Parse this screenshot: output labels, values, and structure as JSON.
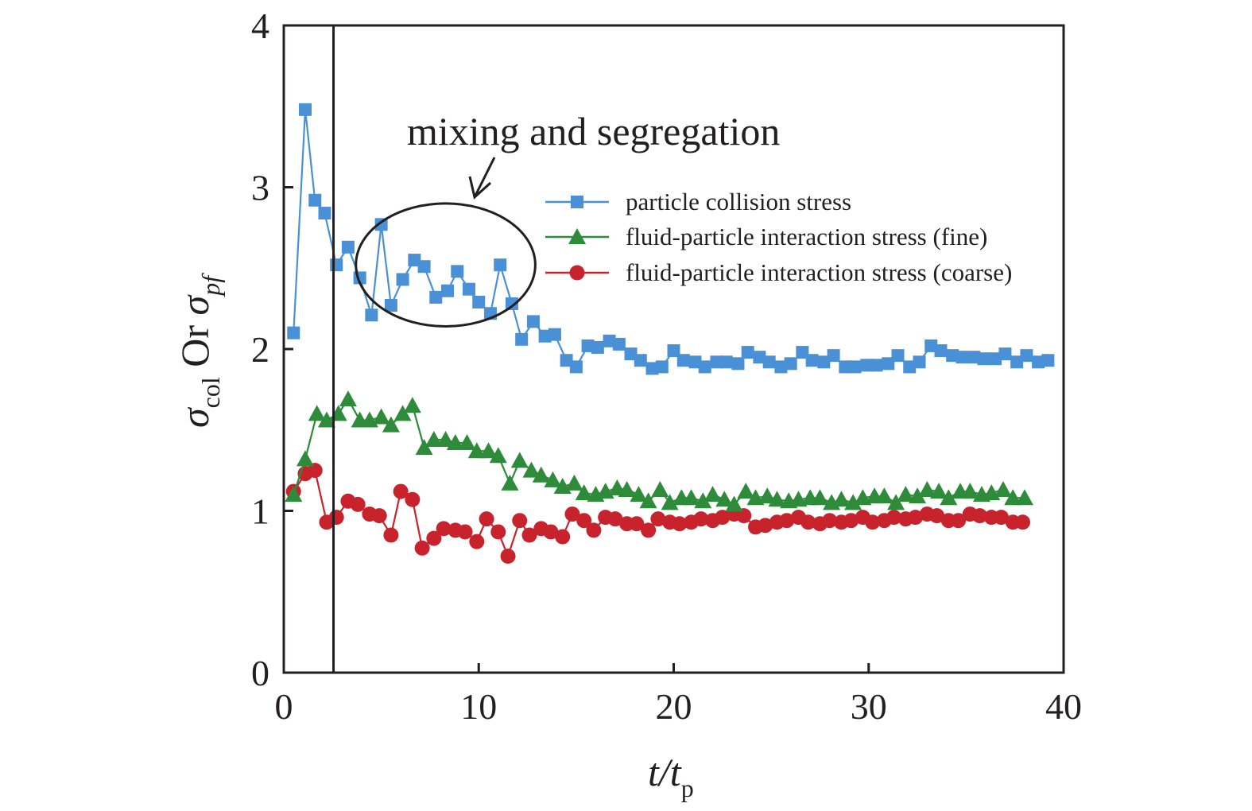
{
  "chart_data": {
    "type": "line",
    "xlabel": {
      "main": "t/t",
      "sub": "p"
    },
    "ylabel": {
      "sigma1": "σ",
      "sub1": "col",
      "or": " Or ",
      "sigma2": "σ",
      "sub2": "pf"
    },
    "xlim": [
      0,
      40
    ],
    "ylim": [
      0,
      4
    ],
    "x_ticks": [
      "0",
      "10",
      "20",
      "30",
      "40"
    ],
    "y_ticks": [
      "0",
      "1",
      "2",
      "3",
      "4"
    ],
    "grid": false,
    "legend_position": "top-right",
    "reference_line_x": 2.55,
    "annotation": {
      "text": "mixing and segregation",
      "center": [
        8.3,
        2.52
      ],
      "radius": [
        4.6,
        0.38
      ]
    },
    "series": [
      {
        "name": "particle collision stress",
        "color": "#4a90d6",
        "marker": "square",
        "x": [
          0.5,
          1.1,
          1.6,
          2.1,
          2.7,
          3.3,
          3.9,
          4.5,
          5.0,
          5.5,
          6.1,
          6.7,
          7.2,
          7.8,
          8.4,
          8.9,
          9.5,
          10.0,
          10.6,
          11.1,
          11.7,
          12.2,
          12.8,
          13.4,
          13.9,
          14.5,
          15.0,
          15.6,
          16.1,
          16.7,
          17.2,
          17.8,
          18.3,
          18.9,
          19.4,
          20.0,
          20.5,
          21.1,
          21.6,
          22.2,
          22.7,
          23.3,
          23.8,
          24.4,
          24.9,
          25.5,
          26.0,
          26.6,
          27.1,
          27.7,
          28.2,
          28.8,
          29.3,
          29.9,
          30.4,
          31.0,
          31.5,
          32.1,
          32.6,
          33.2,
          33.7,
          34.3,
          34.8,
          35.4,
          35.9,
          36.5,
          37.0,
          37.6,
          38.1,
          38.7,
          39.2
        ],
        "y": [
          2.1,
          3.48,
          2.92,
          2.84,
          2.52,
          2.63,
          2.44,
          2.21,
          2.77,
          2.27,
          2.43,
          2.55,
          2.51,
          2.32,
          2.36,
          2.48,
          2.37,
          2.29,
          2.22,
          2.52,
          2.28,
          2.06,
          2.17,
          2.08,
          2.09,
          1.93,
          1.89,
          2.02,
          2.01,
          2.05,
          2.03,
          1.97,
          1.93,
          1.88,
          1.89,
          1.99,
          1.93,
          1.92,
          1.89,
          1.92,
          1.92,
          1.91,
          1.98,
          1.95,
          1.92,
          1.89,
          1.91,
          1.98,
          1.93,
          1.92,
          1.96,
          1.89,
          1.89,
          1.9,
          1.9,
          1.91,
          1.96,
          1.89,
          1.92,
          2.02,
          1.99,
          1.96,
          1.95,
          1.95,
          1.94,
          1.94,
          1.97,
          1.92,
          1.96,
          1.92,
          1.93
        ]
      },
      {
        "name": "fluid-particle interaction stress (fine)",
        "color": "#2e8b3a",
        "marker": "triangle",
        "x": [
          0.5,
          1.1,
          1.7,
          2.2,
          2.8,
          3.3,
          3.9,
          4.4,
          5.0,
          5.5,
          6.1,
          6.6,
          7.2,
          7.7,
          8.3,
          8.8,
          9.4,
          9.9,
          10.5,
          11.0,
          11.6,
          12.1,
          12.7,
          13.2,
          13.8,
          14.3,
          14.9,
          15.4,
          16.0,
          16.5,
          17.1,
          17.6,
          18.2,
          18.7,
          19.3,
          19.8,
          20.4,
          20.9,
          21.5,
          22.0,
          22.6,
          23.1,
          23.7,
          24.2,
          24.8,
          25.3,
          25.9,
          26.4,
          27.0,
          27.5,
          28.1,
          28.6,
          29.2,
          29.7,
          30.3,
          30.8,
          31.4,
          31.9,
          32.5,
          33.0,
          33.6,
          34.1,
          34.7,
          35.2,
          35.8,
          36.3,
          36.9,
          37.4,
          38.0
        ],
        "y": [
          1.1,
          1.32,
          1.6,
          1.56,
          1.6,
          1.69,
          1.56,
          1.56,
          1.58,
          1.53,
          1.6,
          1.65,
          1.39,
          1.44,
          1.44,
          1.42,
          1.42,
          1.37,
          1.37,
          1.34,
          1.17,
          1.31,
          1.25,
          1.22,
          1.19,
          1.15,
          1.17,
          1.11,
          1.1,
          1.12,
          1.14,
          1.13,
          1.1,
          1.06,
          1.13,
          1.05,
          1.08,
          1.08,
          1.06,
          1.1,
          1.07,
          1.04,
          1.12,
          1.08,
          1.09,
          1.07,
          1.06,
          1.07,
          1.08,
          1.08,
          1.05,
          1.07,
          1.05,
          1.08,
          1.09,
          1.09,
          1.05,
          1.1,
          1.09,
          1.13,
          1.12,
          1.08,
          1.12,
          1.12,
          1.1,
          1.11,
          1.13,
          1.08,
          1.08
        ]
      },
      {
        "name": "fluid-particle interaction stress (coarse)",
        "color": "#c8232c",
        "marker": "circle",
        "x": [
          0.5,
          1.1,
          1.6,
          2.2,
          2.7,
          3.3,
          3.8,
          4.4,
          4.9,
          5.5,
          6.0,
          6.6,
          7.1,
          7.7,
          8.2,
          8.8,
          9.3,
          9.9,
          10.4,
          11.0,
          11.5,
          12.1,
          12.6,
          13.2,
          13.7,
          14.3,
          14.8,
          15.4,
          15.9,
          16.5,
          17.0,
          17.6,
          18.1,
          18.7,
          19.2,
          19.8,
          20.3,
          20.9,
          21.4,
          22.0,
          22.5,
          23.1,
          23.6,
          24.2,
          24.7,
          25.3,
          25.8,
          26.4,
          26.9,
          27.5,
          28.0,
          28.6,
          29.1,
          29.7,
          30.2,
          30.8,
          31.3,
          31.9,
          32.4,
          33.0,
          33.5,
          34.1,
          34.6,
          35.2,
          35.7,
          36.3,
          36.8,
          37.4,
          37.9
        ],
        "y": [
          1.12,
          1.23,
          1.25,
          0.93,
          0.96,
          1.06,
          1.04,
          0.98,
          0.97,
          0.85,
          1.12,
          1.07,
          0.77,
          0.83,
          0.89,
          0.88,
          0.87,
          0.81,
          0.95,
          0.87,
          0.72,
          0.94,
          0.85,
          0.89,
          0.87,
          0.84,
          0.98,
          0.94,
          0.88,
          0.96,
          0.95,
          0.92,
          0.92,
          0.88,
          0.95,
          0.93,
          0.92,
          0.93,
          0.95,
          0.94,
          0.96,
          0.98,
          0.97,
          0.9,
          0.91,
          0.93,
          0.94,
          0.96,
          0.93,
          0.92,
          0.94,
          0.93,
          0.94,
          0.96,
          0.93,
          0.94,
          0.96,
          0.95,
          0.96,
          0.98,
          0.97,
          0.94,
          0.94,
          0.98,
          0.97,
          0.96,
          0.96,
          0.93,
          0.93
        ]
      }
    ]
  }
}
